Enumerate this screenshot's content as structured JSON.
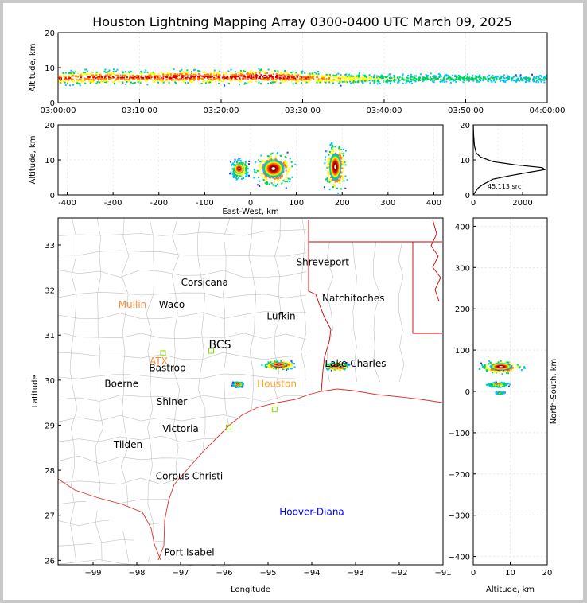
{
  "title": "Houston Lightning Mapping Array 0300-0400 UTC March 09, 2025",
  "colors": {
    "background": "#ffffff",
    "frame": "#c8c8c8",
    "state_lines": "#d00000",
    "county_lines": "#c0c0c0",
    "coastline": "#e03030",
    "city_label": "#000000",
    "radar_label": "#ff8c3c",
    "houston_label": "#ffa020",
    "platform_label": "#0000ff",
    "station_marker": "#7fdd00",
    "density_colormap": [
      "#3030ff",
      "#00c0ff",
      "#00d060",
      "#ffff00",
      "#ff8000",
      "#e00000",
      "#700000",
      "#ffffff"
    ]
  },
  "chart_data": [
    {
      "id": "time_altitude",
      "type": "heatmap",
      "xlabel": "",
      "ylabel": "Altitude, km",
      "xlim": [
        "03:00:00",
        "04:00:00"
      ],
      "ylim": [
        0,
        20
      ],
      "xticks": [
        "03:00:00",
        "03:10:00",
        "03:20:00",
        "03:30:00",
        "03:40:00",
        "03:50:00",
        "04:00:00"
      ],
      "yticks": [
        0,
        10,
        20
      ],
      "activity": [
        {
          "time_min": 0,
          "core_alt_km": 7.2,
          "intensity": 0.8
        },
        {
          "time_min": 5,
          "core_alt_km": 7.5,
          "intensity": 0.85
        },
        {
          "time_min": 10,
          "core_alt_km": 7.4,
          "intensity": 0.8
        },
        {
          "time_min": 15,
          "core_alt_km": 7.6,
          "intensity": 0.9
        },
        {
          "time_min": 20,
          "core_alt_km": 7.5,
          "intensity": 0.85
        },
        {
          "time_min": 25,
          "core_alt_km": 7.7,
          "intensity": 0.95
        },
        {
          "time_min": 30,
          "core_alt_km": 7.3,
          "intensity": 0.8
        },
        {
          "time_min": 35,
          "core_alt_km": 7.0,
          "intensity": 0.6
        },
        {
          "time_min": 40,
          "core_alt_km": 7.0,
          "intensity": 0.45
        },
        {
          "time_min": 45,
          "core_alt_km": 7.2,
          "intensity": 0.4
        },
        {
          "time_min": 50,
          "core_alt_km": 7.2,
          "intensity": 0.4
        },
        {
          "time_min": 55,
          "core_alt_km": 7.0,
          "intensity": 0.3
        },
        {
          "time_min": 60,
          "core_alt_km": 7.0,
          "intensity": 0.3
        }
      ]
    },
    {
      "id": "eastwest_altitude",
      "type": "heatmap",
      "xlabel": "East-West, km",
      "ylabel": "Altitude, km",
      "xlim": [
        -420,
        420
      ],
      "ylim": [
        0,
        20
      ],
      "xticks": [
        -400,
        -300,
        -200,
        -100,
        0,
        100,
        200,
        300,
        400
      ],
      "yticks": [
        0,
        10,
        20
      ],
      "clusters": [
        {
          "x_km": -25,
          "alt_km": 7.5,
          "width_km": 50,
          "height_km": 7,
          "intensity": 0.7
        },
        {
          "x_km": 50,
          "alt_km": 7.5,
          "width_km": 110,
          "height_km": 12,
          "intensity": 0.95
        },
        {
          "x_km": 185,
          "alt_km": 8.0,
          "width_km": 60,
          "height_km": 18,
          "intensity": 1.0
        }
      ]
    },
    {
      "id": "altitude_histogram",
      "type": "line",
      "annotation": "45,113 src",
      "xlim": [
        0,
        3000
      ],
      "ylim": [
        0,
        20
      ],
      "xticks": [
        0,
        2000
      ],
      "yticks": [
        0,
        10,
        20
      ],
      "x": [
        0,
        200,
        400,
        800,
        1500,
        2300,
        2900,
        2800,
        1700,
        800,
        300,
        120,
        50,
        15,
        0
      ],
      "y": [
        0,
        2,
        3,
        4.5,
        5.5,
        6.5,
        7.2,
        7.8,
        8.6,
        9.5,
        10.8,
        12,
        14,
        17,
        20
      ]
    },
    {
      "id": "plan_view_map",
      "type": "heatmap",
      "xlabel": "Longitude",
      "ylabel": "Latitude",
      "xlim": [
        -99.8,
        -91
      ],
      "ylim": [
        25.9,
        33.6
      ],
      "xticks": [
        -99,
        -98,
        -97,
        -96,
        -95,
        -94,
        -93,
        -92,
        -91
      ],
      "yticks": [
        26,
        27,
        28,
        29,
        30,
        31,
        32,
        33
      ],
      "cities": [
        {
          "name": "Shreveport",
          "lon": -93.75,
          "lat": 32.55
        },
        {
          "name": "Corsicana",
          "lon": -96.45,
          "lat": 32.1
        },
        {
          "name": "Natchitoches",
          "lon": -93.05,
          "lat": 31.75
        },
        {
          "name": "Waco",
          "lon": -97.2,
          "lat": 31.6
        },
        {
          "name": "Lufkin",
          "lon": -94.7,
          "lat": 31.35
        },
        {
          "name": "Bastrop",
          "lon": -97.3,
          "lat": 30.2
        },
        {
          "name": "Boerne",
          "lon": -98.35,
          "lat": 29.85
        },
        {
          "name": "Shiner",
          "lon": -97.2,
          "lat": 29.45
        },
        {
          "name": "Victoria",
          "lon": -97.0,
          "lat": 28.85
        },
        {
          "name": "Tilden",
          "lon": -98.2,
          "lat": 28.5
        },
        {
          "name": "Corpus Christi",
          "lon": -96.8,
          "lat": 27.8
        },
        {
          "name": "Port Isabel",
          "lon": -96.8,
          "lat": 26.1
        },
        {
          "name": "Lake Charles",
          "lon": -93.0,
          "lat": 30.3
        }
      ],
      "radars": [
        {
          "name": "Mullin",
          "lon": -98.1,
          "lat": 31.6
        },
        {
          "name": "ATX",
          "lon": -97.5,
          "lat": 30.35
        }
      ],
      "other_labels": [
        {
          "name": "BCS",
          "lon": -96.1,
          "lat": 30.7,
          "kind": "city"
        },
        {
          "name": "Houston",
          "lon": -94.8,
          "lat": 29.85,
          "kind": "houston"
        },
        {
          "name": "Hoover-Diana",
          "lon": -94.0,
          "lat": 27.0,
          "kind": "platform"
        }
      ],
      "stations": [
        {
          "lon": -97.4,
          "lat": 30.6
        },
        {
          "lon": -96.3,
          "lat": 30.65
        },
        {
          "lon": -94.85,
          "lat": 29.35
        },
        {
          "lon": -95.9,
          "lat": 28.95
        }
      ],
      "clusters": [
        {
          "lon": -94.75,
          "lat": 30.35,
          "rx": 0.45,
          "ry": 0.12,
          "intensity": 0.95
        },
        {
          "lon": -93.45,
          "lat": 30.32,
          "rx": 0.35,
          "ry": 0.1,
          "intensity": 1.0
        },
        {
          "lon": -95.7,
          "lat": 29.92,
          "rx": 0.15,
          "ry": 0.07,
          "intensity": 0.7
        }
      ]
    },
    {
      "id": "altitude_northsouth",
      "type": "heatmap",
      "xlabel": "Altitude, km",
      "ylabel": "North-South, km",
      "xlim": [
        0,
        20
      ],
      "ylim": [
        -420,
        420
      ],
      "xticks": [
        0,
        10,
        20
      ],
      "yticks": [
        -400,
        -300,
        -200,
        -100,
        0,
        100,
        200,
        300,
        400
      ],
      "clusters": [
        {
          "alt_km": 7.5,
          "ns_km": 60,
          "width_km": 14,
          "height_km": 40,
          "intensity": 1.0
        },
        {
          "alt_km": 6.5,
          "ns_km": 18,
          "width_km": 8,
          "height_km": 14,
          "intensity": 0.6
        },
        {
          "alt_km": 7.0,
          "ns_km": -2,
          "width_km": 3,
          "height_km": 8,
          "intensity": 0.4
        }
      ]
    }
  ]
}
